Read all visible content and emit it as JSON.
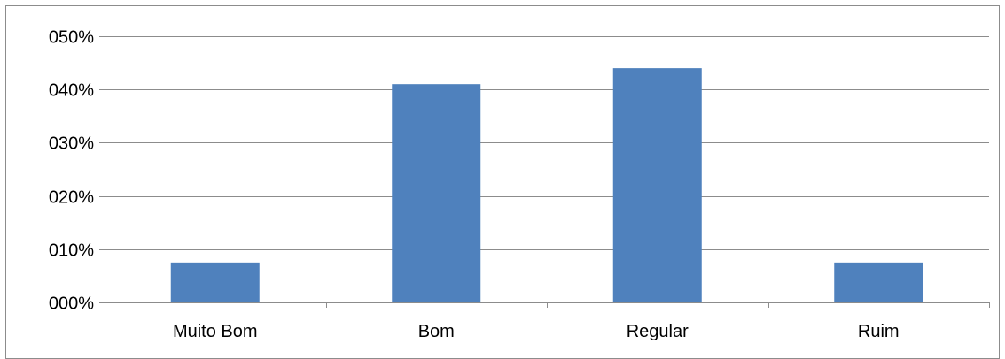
{
  "chart_data": {
    "type": "bar",
    "categories": [
      "Muito Bom",
      "Bom",
      "Regular",
      "Ruim"
    ],
    "values": [
      0.075,
      0.41,
      0.44,
      0.075
    ],
    "ylim": [
      0,
      0.5
    ],
    "y_ticks": [
      {
        "value": 0.0,
        "label": "000%"
      },
      {
        "value": 0.1,
        "label": "010%"
      },
      {
        "value": 0.2,
        "label": "020%"
      },
      {
        "value": 0.3,
        "label": "030%"
      },
      {
        "value": 0.4,
        "label": "040%"
      },
      {
        "value": 0.5,
        "label": "050%"
      }
    ],
    "grid": true,
    "legend": "none",
    "colors": {
      "bar": "#4f81bd",
      "grid": "#8c8c8c",
      "axis": "#8c8c8c"
    }
  }
}
